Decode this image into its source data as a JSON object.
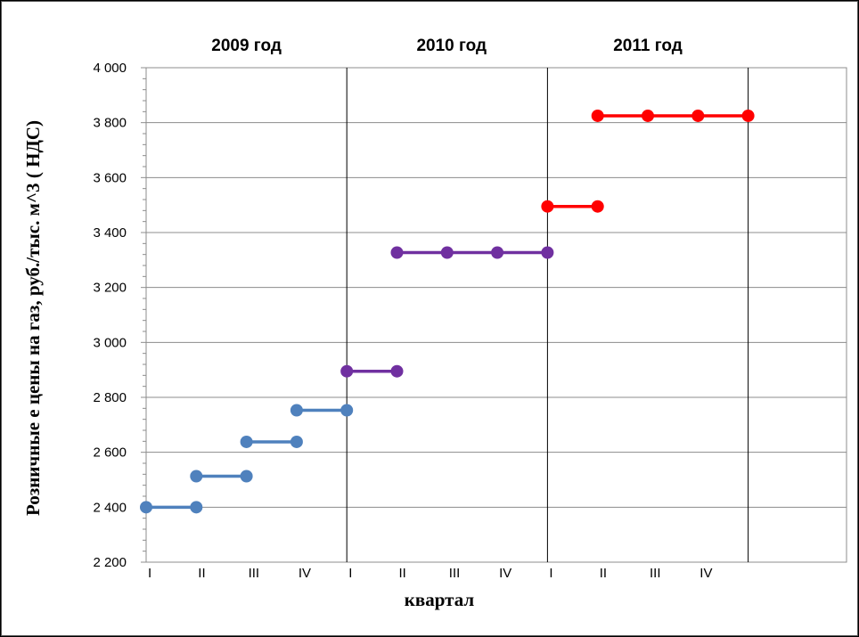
{
  "chart_data": {
    "type": "line",
    "ylabel": "Розничные е цены на газ, руб./тыс. м^3 ( НДС)",
    "xlabel": "квартал",
    "ylim": [
      2200,
      4000
    ],
    "yticks": [
      2200,
      2400,
      2600,
      2800,
      3000,
      3200,
      3400,
      3600,
      3800,
      4000
    ],
    "ytick_labels": [
      "2 200",
      "2 400",
      "2 600",
      "2 800",
      "3 000",
      "3 200",
      "3 400",
      "3 600",
      "3 800",
      "4 000"
    ],
    "categories": [
      "I",
      "II",
      "III",
      "IV",
      "I",
      "II",
      "III",
      "IV",
      "I",
      "II",
      "III",
      "IV"
    ],
    "year_labels": [
      "2009 год",
      "2010 год",
      "2011 год"
    ],
    "grid": true,
    "colors": {
      "y2009": "#4f81bd",
      "y2010": "#7030a0",
      "y2011": "#ff0000"
    },
    "segments": [
      {
        "color": "#4f81bd",
        "x": [
          0,
          1
        ],
        "values": [
          2400,
          2400
        ]
      },
      {
        "color": "#4f81bd",
        "x": [
          1,
          2
        ],
        "values": [
          2513,
          2513
        ]
      },
      {
        "color": "#4f81bd",
        "x": [
          2,
          3
        ],
        "values": [
          2638,
          2638
        ]
      },
      {
        "color": "#4f81bd",
        "x": [
          3,
          4
        ],
        "values": [
          2753,
          2753
        ]
      },
      {
        "color": "#7030a0",
        "x": [
          4,
          5
        ],
        "values": [
          2895,
          2895
        ]
      },
      {
        "color": "#7030a0",
        "x": [
          5,
          6,
          7,
          8
        ],
        "values": [
          3327,
          3327,
          3327,
          3327
        ]
      },
      {
        "color": "#ff0000",
        "x": [
          8,
          9
        ],
        "values": [
          3495,
          3495
        ]
      },
      {
        "color": "#ff0000",
        "x": [
          9,
          10,
          11,
          12
        ],
        "values": [
          3825,
          3825,
          3825,
          3825
        ]
      }
    ]
  }
}
